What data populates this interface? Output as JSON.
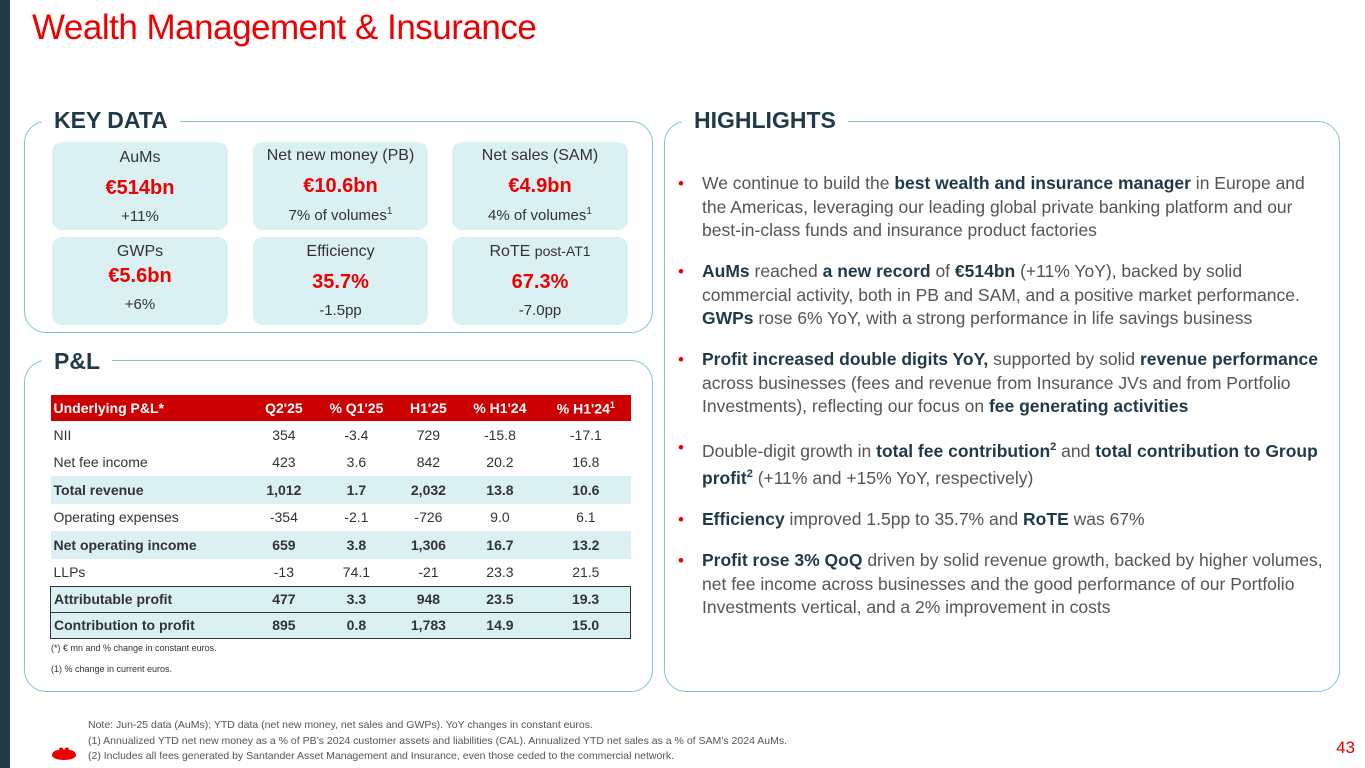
{
  "title": "Wealth Management & Insurance",
  "key_data": {
    "label": "KEY DATA",
    "cards": [
      {
        "label": "AuMs",
        "value": "€514bn",
        "sub": "+11%"
      },
      {
        "label": "Net new money (PB)",
        "value": "€10.6bn",
        "sub": "7% of volumes",
        "sub_sup": "1"
      },
      {
        "label": "Net sales (SAM)",
        "value": "€4.9bn",
        "sub": "4% of volumes",
        "sub_sup": "1"
      },
      {
        "label": "GWPs",
        "value": "€5.6bn",
        "sub": "+6%"
      },
      {
        "label": "Efficiency",
        "value": "35.7%",
        "sub": "-1.5pp"
      },
      {
        "label": "RoTE",
        "label_small": "post-AT1",
        "value": "67.3%",
        "sub": "-7.0pp"
      }
    ]
  },
  "pl": {
    "label": "P&L",
    "headers": [
      "Underlying P&L*",
      "Q2'25",
      "% Q1'25",
      "H1'25",
      "% H1'24",
      "% H1'24"
    ],
    "header_sup": "1",
    "rows": [
      [
        "NII",
        "354",
        "-3.4",
        "729",
        "-15.8",
        "-17.1"
      ],
      [
        "Net fee income",
        "423",
        "3.6",
        "842",
        "20.2",
        "16.8"
      ],
      [
        "Total revenue",
        "1,012",
        "1.7",
        "2,032",
        "13.8",
        "10.6"
      ],
      [
        "Operating expenses",
        "-354",
        "-2.1",
        "-726",
        "9.0",
        "6.1"
      ],
      [
        "Net operating income",
        "659",
        "3.8",
        "1,306",
        "16.7",
        "13.2"
      ],
      [
        "LLPs",
        "-13",
        "74.1",
        "-21",
        "23.3",
        "21.5"
      ],
      [
        "Attributable profit",
        "477",
        "3.3",
        "948",
        "23.5",
        "19.3"
      ],
      [
        "Contribution to profit",
        "895",
        "0.8",
        "1,783",
        "14.9",
        "15.0"
      ]
    ],
    "footnote1": "(*) € mn and % change in constant euros.",
    "footnote2": "(1)  % change in current euros."
  },
  "highlights": {
    "label": "HIGHLIGHTS",
    "items": {
      "h1": {
        "t1": "We continue to build the ",
        "b1": "best wealth and insurance manager",
        "t2": " in Europe and the Americas, leveraging our leading global private banking platform and our best-in-class funds and insurance product factories"
      },
      "h2": {
        "b1": "AuMs",
        "t1": " reached ",
        "b2": "a new record",
        "t2": " of ",
        "b3": "€514bn",
        "t3": " (+11% YoY), backed by solid commercial activity, both in PB and SAM, and a positive market performance. ",
        "b4": "GWPs",
        "t4": " rose 6% YoY, with a strong performance in life savings business"
      },
      "h3": {
        "b1": "Profit increased double digits YoY,",
        "t1": " supported by solid ",
        "b2": "revenue performance",
        "t2": " across businesses (fees and revenue from Insurance JVs and from Portfolio Investments), reflecting our focus on ",
        "b3": "fee generating activities"
      },
      "h4": {
        "t1": "Double-digit growth in ",
        "b1": "total fee contribution",
        "s1": "2",
        "t2": " and ",
        "b2": "total contribution to Group profit",
        "s2": "2",
        "t3": " (+11% and +15% YoY, respectively)"
      },
      "h5": {
        "b1": "Efficiency",
        "t1": " improved 1.5pp to 35.7% and ",
        "b2": "RoTE",
        "t2": " was 67%"
      },
      "h6": {
        "b1": "Profit rose 3% QoQ",
        "t1": " driven by solid revenue growth, backed by higher volumes, net fee income across businesses and the good performance of our Portfolio Investments vertical, and a 2% improvement in costs"
      }
    }
  },
  "notes": {
    "n0": "Note:  Jun-25 data (AuMs); YTD data (net new money, net sales and GWPs). YoY changes in constant euros.",
    "n1": "(1)    Annualized YTD net new money as a % of PB’s 2024 customer assets and liabilities (CAL). Annualized YTD net sales as a % of SAM’s 2024 AuMs.",
    "n2": "(2)    Includes all fees generated by Santander Asset Management and Insurance, even those ceded to the commercial network."
  },
  "page_number": "43",
  "colors": {
    "brand_red": "#ec0000",
    "teal_border": "#7fc6d0",
    "card_bg": "#daf0f3",
    "dark": "#1f3a46"
  }
}
